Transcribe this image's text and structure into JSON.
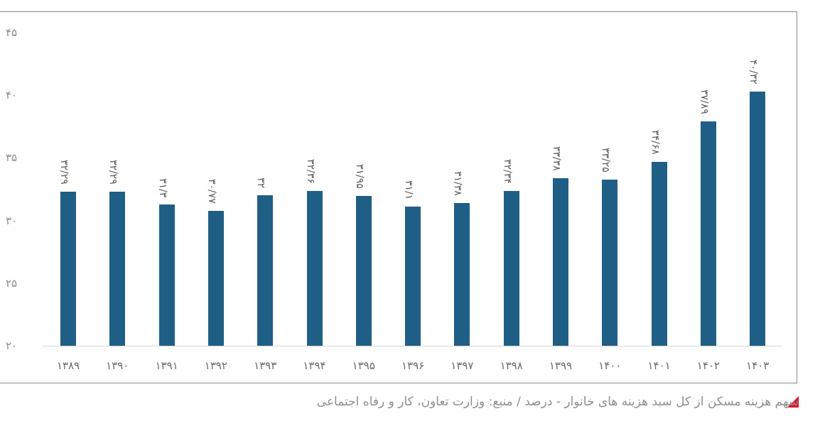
{
  "chart_data": {
    "type": "bar",
    "title": "سهم هزینه مسکن از کل سبد هزینه های خانوار - درصد / منبع: وزارت تعاون، کار و رفاه اجتماعی",
    "xlabel": "",
    "ylabel": "",
    "ylim": [
      20,
      45
    ],
    "grid": false,
    "legend": "none",
    "yticks": [
      "۲۰",
      "۲۵",
      "۳۰",
      "۳۵",
      "۴۰",
      "۴۵"
    ],
    "ytick_values": [
      20,
      25,
      30,
      35,
      40,
      45
    ],
    "categories": [
      "۱۳۸۹",
      "۱۳۹۰",
      "۱۳۹۱",
      "۱۳۹۲",
      "۱۳۹۳",
      "۱۳۹۴",
      "۱۳۹۵",
      "۱۳۹۶",
      "۱۳۹۷",
      "۱۳۹۸",
      "۱۳۹۹",
      "۱۴۰۰",
      "۱۴۰۱",
      "۱۴۰۲",
      "۱۴۰۳"
    ],
    "values": [
      32.29,
      32.29,
      31.3,
      30.77,
      32,
      32.36,
      31.95,
      31.1,
      31.38,
      32.34,
      33.38,
      33.25,
      34.68,
      37.89,
      40.32
    ],
    "data_labels": [
      "۳۲/۲۹",
      "۳۲/۲۹",
      "۳۱/۳",
      "۳۰/۷۷",
      "۳۲",
      "۳۲/۳۶",
      "۳۱/۹۵",
      "۳۱/۱",
      "۳۱/۳۸",
      "۳۲/۳۴",
      "۳۳/۳۸",
      "۳۳/۲۵",
      "۳۴/۶۸",
      "۳۷/۸۹",
      "۴۰/۳۲"
    ],
    "bar_color": "#1f5f86"
  },
  "caption": {
    "text": "سهم هزینه مسکن از کل سبد هزینه های خانوار - درصد / منبع: وزارت تعاون، کار و رفاه اجتماعی",
    "marker_color": "#e0102a"
  }
}
